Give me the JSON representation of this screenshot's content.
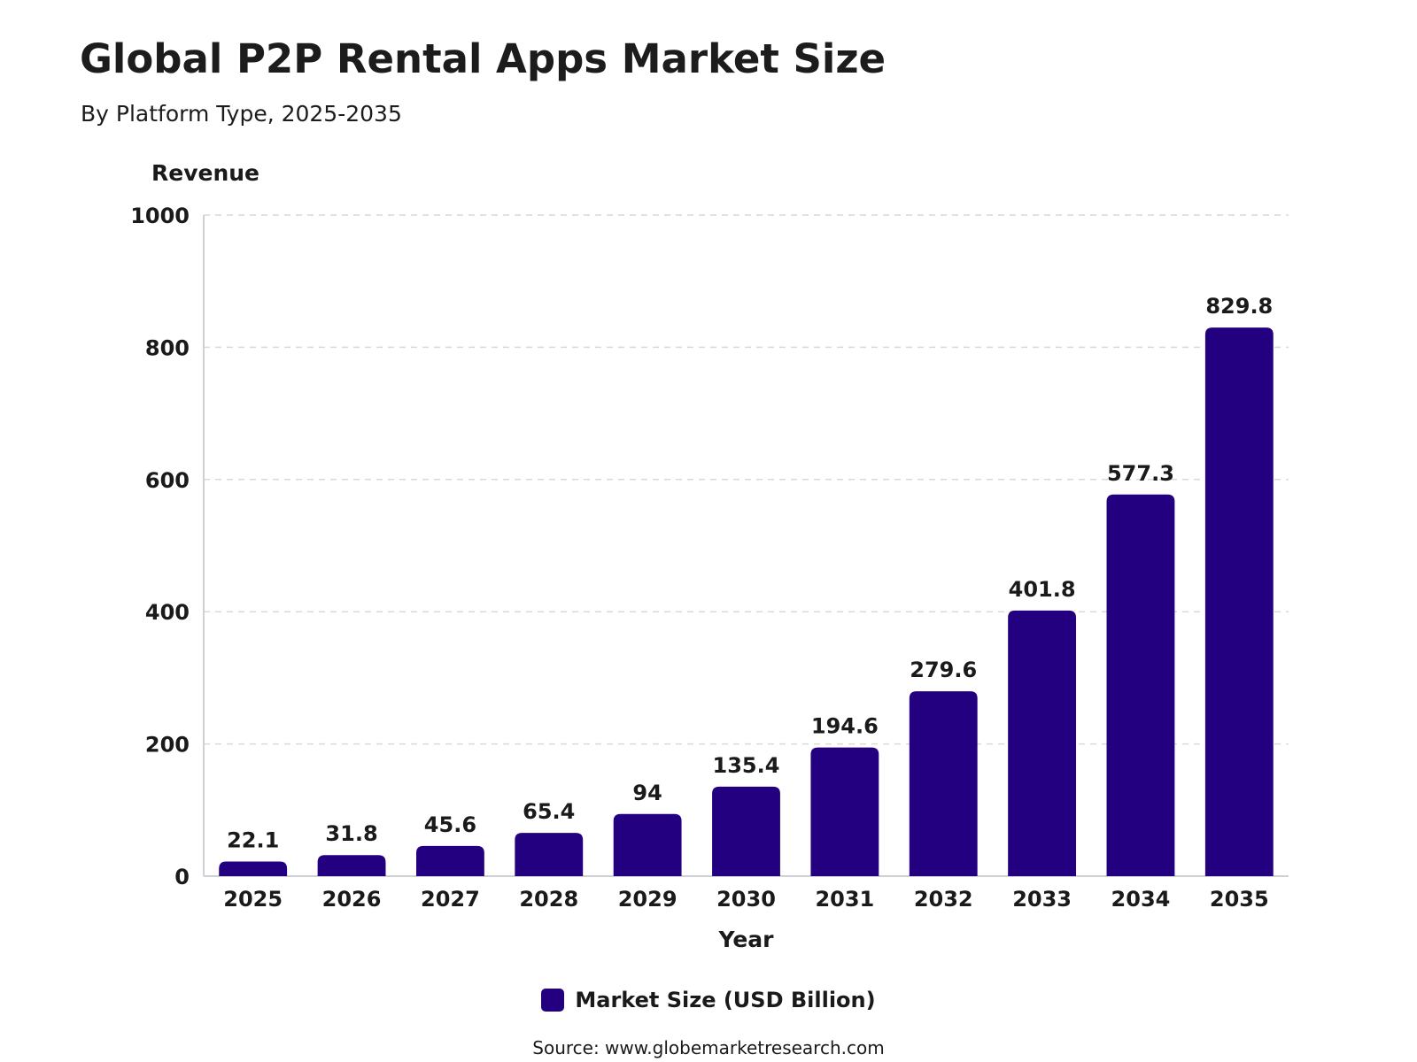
{
  "chart_data": {
    "type": "bar",
    "title": "Global P2P Rental Apps Market Size",
    "subtitle": "By Platform Type, 2025-2035",
    "ylabel": "Revenue",
    "xlabel": "Year",
    "categories": [
      "2025",
      "2026",
      "2027",
      "2028",
      "2029",
      "2030",
      "2031",
      "2032",
      "2033",
      "2034",
      "2035"
    ],
    "series": [
      {
        "name": "Market Size (USD Billion)",
        "values": [
          22.1,
          31.8,
          45.6,
          65.4,
          94,
          135.4,
          194.6,
          279.6,
          401.8,
          577.3,
          829.8
        ]
      }
    ],
    "ylim": [
      0,
      1000
    ],
    "yticks": [
      0,
      200,
      400,
      600,
      800,
      1000
    ],
    "grid": true,
    "legend_position": "bottom-center",
    "bar_color": "#22007f"
  },
  "source": "Source: www.globemarketresearch.com"
}
